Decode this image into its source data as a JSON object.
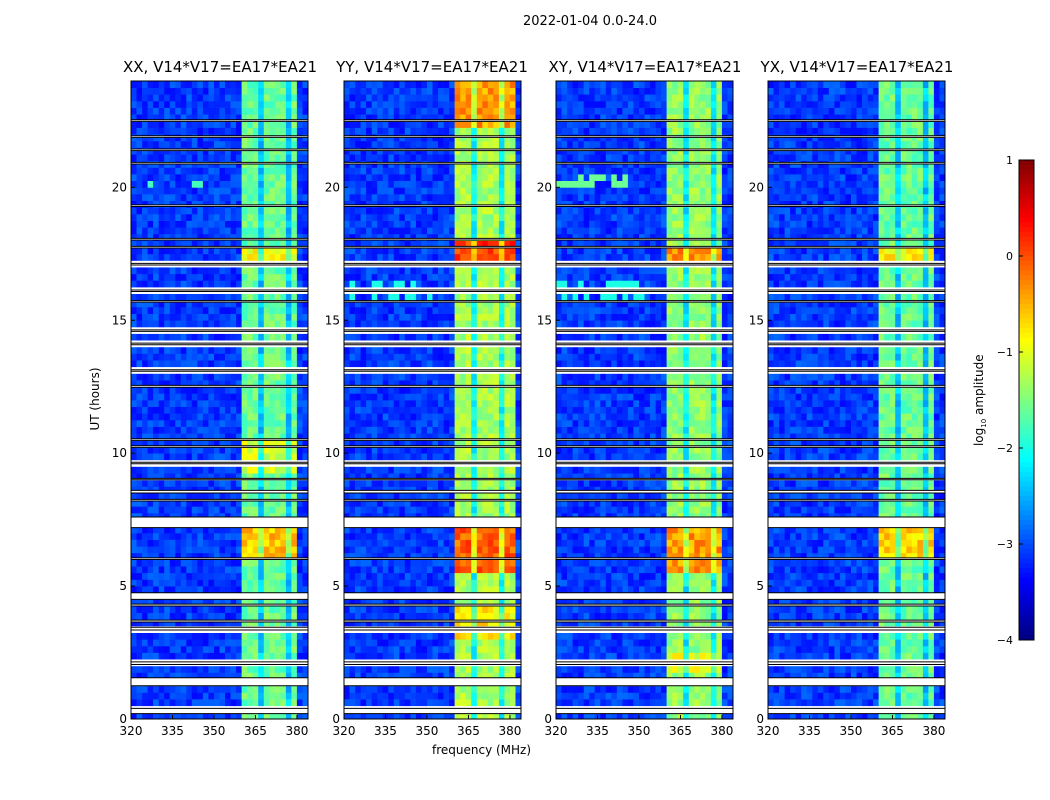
{
  "suptitle": "2022-01-04 0.0-24.0",
  "chart_data": {
    "type": "heatmap",
    "title": "2022-01-04 0.0-24.0",
    "xlabel": "frequency (MHz)",
    "ylabel": "UT (hours)",
    "xlim": [
      320,
      384
    ],
    "ylim": [
      0,
      24
    ],
    "xticks": [
      "320",
      "335",
      "350",
      "365",
      "380"
    ],
    "yticks": [
      "0",
      "5",
      "10",
      "15",
      "20"
    ],
    "colorbar": {
      "label": "log10 amplitude",
      "label_main": "log",
      "label_sub": "10",
      "label_rest": " amplitude",
      "range": [
        -4,
        1
      ],
      "ticks": [
        "1",
        "0",
        "−1",
        "−2",
        "−3",
        "−4"
      ],
      "colormap": "jet"
    },
    "background_level": -3.1,
    "flagged_hours": [
      [
        0.2,
        0.4
      ],
      [
        1.25,
        1.55
      ],
      [
        2.05,
        2.15
      ],
      [
        3.35,
        3.45
      ],
      [
        3.65,
        3.72
      ],
      [
        4.25,
        4.32
      ],
      [
        4.5,
        4.75
      ],
      [
        6.0,
        6.06
      ],
      [
        7.2,
        7.6
      ],
      [
        8.2,
        8.26
      ],
      [
        8.5,
        8.6
      ],
      [
        9.0,
        9.05
      ],
      [
        9.6,
        9.66
      ],
      [
        10.22,
        10.28
      ],
      [
        10.48,
        10.54
      ],
      [
        12.48,
        12.55
      ],
      [
        13.08,
        13.14
      ],
      [
        14.08,
        14.14
      ],
      [
        14.58,
        14.64
      ],
      [
        15.68,
        15.74
      ],
      [
        16.08,
        16.14
      ],
      [
        17.08,
        17.14
      ],
      [
        17.72,
        17.78
      ],
      [
        18.02,
        18.08
      ],
      [
        19.28,
        19.34
      ],
      [
        20.88,
        20.94
      ],
      [
        21.38,
        21.44
      ],
      [
        21.88,
        21.94
      ],
      [
        22.48,
        22.54
      ]
    ],
    "panels": [
      {
        "title": "XX, V14*V17=EA17*EA21",
        "band": {
          "freq": [
            361,
            380
          ],
          "level": -1.6
        },
        "events": [
          {
            "hours": [
              5.8,
              7.1
            ],
            "level": -0.6
          },
          {
            "hours": [
              16.9,
              17.6
            ],
            "level": -0.9
          },
          {
            "hours": [
              9.2,
              10.3
            ],
            "level": -1.1
          }
        ],
        "rfi": [
          {
            "hours": [
              19.9,
              20.1
            ],
            "freq": [
              320,
              346
            ],
            "level": -1.8
          }
        ]
      },
      {
        "title": "YY, V14*V17=EA17*EA21",
        "band": {
          "freq": [
            361,
            381
          ],
          "level": -1.3
        },
        "events": [
          {
            "hours": [
              5.4,
              7.2
            ],
            "level": -0.1
          },
          {
            "hours": [
              16.8,
              18.0
            ],
            "level": 0.1
          },
          {
            "hours": [
              22.2,
              24
            ],
            "level": -0.4
          },
          {
            "hours": [
              2.8,
              4.2
            ],
            "level": -0.8
          }
        ],
        "rfi": [
          {
            "hours": [
              15.7,
              16.5
            ],
            "freq": [
              320,
              352
            ],
            "level": -2.0
          }
        ]
      },
      {
        "title": "XY, V14*V17=EA17*EA21",
        "band": {
          "freq": [
            361,
            380
          ],
          "level": -1.4
        },
        "events": [
          {
            "hours": [
              5.4,
              7.2
            ],
            "level": -0.4
          },
          {
            "hours": [
              16.9,
              17.6
            ],
            "level": -0.3
          },
          {
            "hours": [
              1.7,
              2.5
            ],
            "level": -1.0
          }
        ],
        "rfi": [
          {
            "hours": [
              19.9,
              20.4
            ],
            "freq": [
              320,
              346
            ],
            "level": -1.6
          },
          {
            "hours": [
              15.7,
              16.3
            ],
            "freq": [
              320,
              352
            ],
            "level": -2.0
          }
        ]
      },
      {
        "title": "YX, V14*V17=EA17*EA21",
        "band": {
          "freq": [
            361,
            380
          ],
          "level": -1.6
        },
        "events": [
          {
            "hours": [
              5.8,
              7.1
            ],
            "level": -0.7
          },
          {
            "hours": [
              16.9,
              17.6
            ],
            "level": -0.8
          }
        ],
        "rfi": []
      }
    ]
  }
}
